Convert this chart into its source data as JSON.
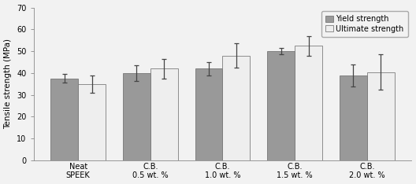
{
  "categories": [
    "Neat\nSPEEK",
    "C.B.\n0.5 wt. %",
    "C.B.\n1.0 wt. %",
    "C.B.\n1.5 wt. %",
    "C.B.\n2.0 wt. %"
  ],
  "yield_values": [
    37.5,
    40.0,
    42.0,
    50.0,
    39.0
  ],
  "ultimate_values": [
    35.0,
    42.0,
    48.0,
    52.5,
    40.5
  ],
  "yield_errors": [
    2.0,
    3.5,
    3.0,
    1.5,
    5.0
  ],
  "ultimate_errors": [
    4.0,
    4.5,
    5.5,
    4.5,
    8.0
  ],
  "yield_color": "#999999",
  "ultimate_color": "#eeeeee",
  "fig_facecolor": "#f2f2f2",
  "ax_facecolor": "#f2f2f2",
  "ylabel": "Tensile strength (MPa)",
  "ylim": [
    0,
    70
  ],
  "yticks": [
    0,
    10,
    20,
    30,
    40,
    50,
    60,
    70
  ],
  "legend_labels": [
    "Yield strength",
    "Ultimate strength"
  ],
  "bar_width": 0.38,
  "edge_color": "#666666",
  "error_capsize": 2.5,
  "error_linewidth": 0.9,
  "error_color": "#444444"
}
